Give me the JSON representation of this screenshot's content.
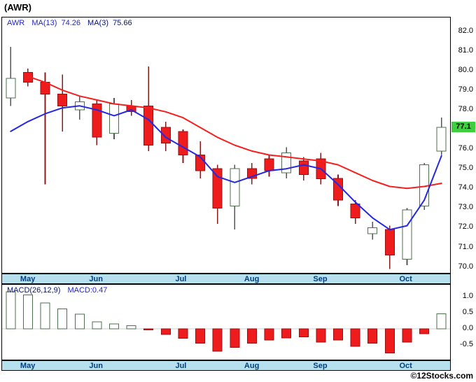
{
  "title": "(AWR)",
  "footer": {
    "copyright": "©12Stocks.com"
  },
  "colors": {
    "up_fill": "#ffffff",
    "up_stroke": "#4f6f4f",
    "up_wick": "#555555",
    "down_fill": "#ee1c1c",
    "down_stroke": "#991111",
    "down_wick": "#8b1a1a",
    "ma13": "#f42020",
    "ma3": "#2428e0",
    "band_bg": "#b7e0ee",
    "band_text": "#003e7e",
    "price_tag_bg": "#3fce3f",
    "price_tag_text": "#000000",
    "legend_blue": "#2326cc",
    "legend_navy": "#00108a",
    "axis_text": "#111111",
    "zero_line": "#cccccc"
  },
  "chart_data": [
    {
      "type": "candlestick",
      "symbol": "AWR",
      "title": "AWR weekly price with moving averages, May–Oct",
      "legend": {
        "symbol": "AWR",
        "ma13_label": "MA(13)",
        "ma13_value": "74.26",
        "ma3_label": "MA(3)",
        "ma3_value": "75.66"
      },
      "ylim": [
        69.7,
        82.7
      ],
      "yticks": [
        82,
        81,
        80,
        79,
        78,
        76,
        75,
        74,
        73,
        72,
        71,
        70
      ],
      "last_price": 77.1,
      "last_price_label": "77.1",
      "months": [
        {
          "label": "May",
          "index": 1
        },
        {
          "label": "Jun",
          "index": 5
        },
        {
          "label": "Jul",
          "index": 10
        },
        {
          "label": "Aug",
          "index": 14
        },
        {
          "label": "Sep",
          "index": 18
        },
        {
          "label": "Oct",
          "index": 23
        }
      ],
      "candles": [
        [
          78.6,
          81.2,
          78.2,
          79.6
        ],
        [
          79.9,
          80.1,
          79.2,
          79.4
        ],
        [
          79.4,
          79.9,
          74.2,
          78.8
        ],
        [
          78.8,
          79.8,
          76.9,
          78.2
        ],
        [
          78.0,
          78.7,
          77.5,
          78.4
        ],
        [
          78.3,
          78.5,
          76.2,
          76.6
        ],
        [
          76.8,
          78.6,
          76.5,
          78.3
        ],
        [
          78.2,
          78.5,
          77.7,
          77.9
        ],
        [
          78.2,
          80.2,
          75.9,
          76.2
        ],
        [
          77.1,
          77.4,
          75.9,
          76.3
        ],
        [
          76.9,
          77.0,
          75.3,
          75.7
        ],
        [
          75.7,
          76.4,
          74.5,
          74.9
        ],
        [
          75.0,
          75.2,
          72.2,
          73.0
        ],
        [
          73.1,
          75.2,
          71.9,
          75.0
        ],
        [
          75.0,
          75.3,
          74.2,
          74.5
        ],
        [
          75.5,
          75.7,
          74.6,
          74.9
        ],
        [
          74.8,
          76.1,
          74.5,
          75.8
        ],
        [
          75.4,
          75.6,
          74.4,
          74.7
        ],
        [
          75.5,
          75.8,
          74.2,
          74.5
        ],
        [
          74.5,
          74.7,
          73.1,
          73.4
        ],
        [
          73.2,
          73.4,
          72.2,
          72.5
        ],
        [
          71.7,
          72.3,
          71.4,
          72.0
        ],
        [
          71.9,
          72.1,
          69.9,
          70.6
        ],
        [
          70.4,
          73.0,
          70.1,
          72.9
        ],
        [
          73.1,
          75.3,
          72.9,
          75.2
        ],
        [
          75.9,
          77.6,
          75.7,
          77.1
        ]
      ],
      "series": [
        {
          "name": "MA13",
          "color_key": "ma13",
          "values": [
            null,
            79.7,
            79.4,
            79.0,
            78.7,
            78.5,
            78.3,
            78.2,
            78.1,
            77.9,
            77.6,
            77.1,
            76.6,
            76.2,
            75.9,
            75.7,
            75.6,
            75.5,
            75.4,
            75.2,
            74.8,
            74.4,
            74.1,
            74.0,
            74.1,
            74.26
          ]
        },
        {
          "name": "MA3",
          "color_key": "ma3",
          "values": [
            76.9,
            77.4,
            77.8,
            78.1,
            78.2,
            78.0,
            77.7,
            78.0,
            77.5,
            76.6,
            76.1,
            75.6,
            74.6,
            74.3,
            74.6,
            74.9,
            75.0,
            75.2,
            75.0,
            74.2,
            73.3,
            72.5,
            71.9,
            72.1,
            73.4,
            75.66
          ]
        }
      ]
    },
    {
      "type": "bar",
      "name": "MACD histogram",
      "legend": {
        "label": "MACD(26,12,9)",
        "value": "MACD:0.47"
      },
      "ylim": [
        -0.96,
        1.37
      ],
      "yticks": [
        1.0,
        0.5,
        0.0,
        -0.5
      ],
      "values": [
        1.15,
        1.05,
        0.8,
        0.62,
        0.45,
        0.22,
        0.15,
        0.1,
        -0.03,
        -0.18,
        -0.3,
        -0.45,
        -0.7,
        -0.58,
        -0.45,
        -0.35,
        -0.28,
        -0.25,
        -0.42,
        -0.35,
        -0.55,
        -0.45,
        -0.75,
        -0.42,
        -0.15,
        0.47
      ]
    }
  ]
}
